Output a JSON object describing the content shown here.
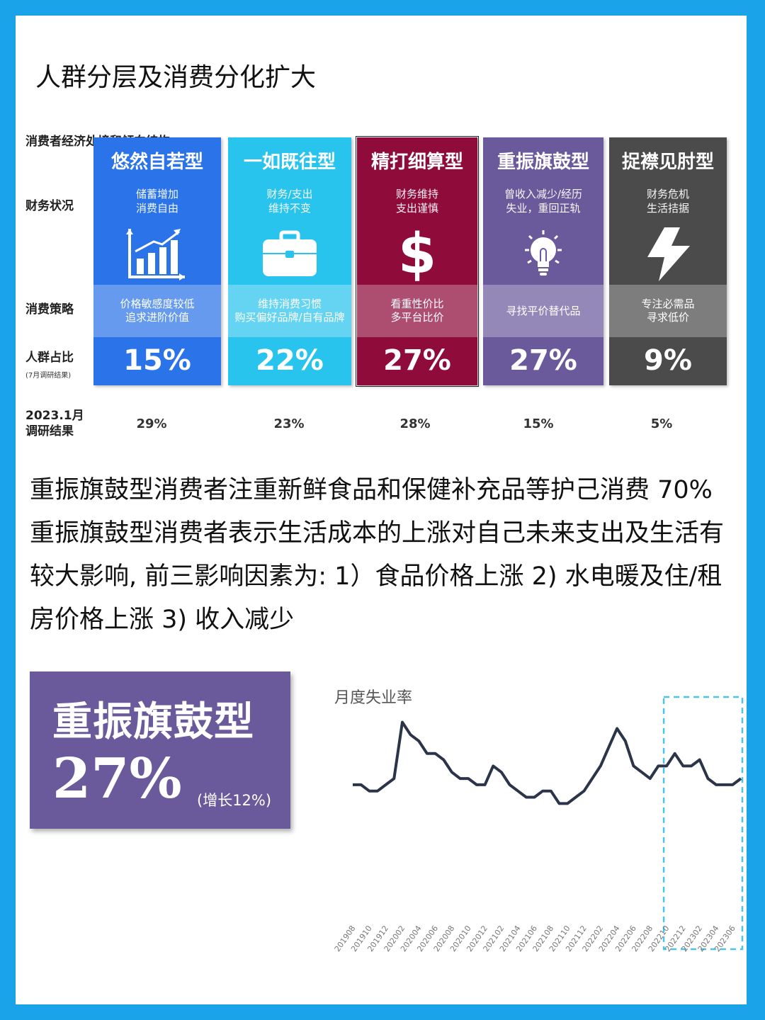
{
  "title": "人群分层及消费分化扩大",
  "subtitle": "消费者经济处境和倾向结构",
  "row_labels": {
    "finance": "财务状况",
    "strategy": "消费策略",
    "share": "人群占比",
    "share_note": "(7月调研结果)",
    "jan_line1": "2023.1月",
    "jan_line2": "调研结果"
  },
  "segments": [
    {
      "name": "悠然自若型",
      "fin1": "储蓄增加",
      "fin2": "消费自由",
      "icon": "growth-chart-icon",
      "strat1": "价格敏感度较低",
      "strat2": "追求进阶价值",
      "pct": "15%",
      "jan": "29%",
      "color": "#2a73e8"
    },
    {
      "name": "一如既往型",
      "fin1": "财务/支出",
      "fin2": "维持不变",
      "icon": "briefcase-icon",
      "strat1": "维持消费习惯",
      "strat2": "购买偏好品牌/自有品牌",
      "pct": "22%",
      "jan": "23%",
      "color": "#29c4ee"
    },
    {
      "name": "精打细算型",
      "fin1": "财务维持",
      "fin2": "支出谨慎",
      "icon": "dollar-icon",
      "strat1": "看重性价比",
      "strat2": "多平台比价",
      "pct": "27%",
      "jan": "28%",
      "color": "#8e0b3a"
    },
    {
      "name": "重振旗鼓型",
      "fin1": "曾收入减少/经历",
      "fin2": "失业，重回正轨",
      "icon": "lightbulb-icon",
      "strat1": "寻找平价替代品",
      "strat2": "",
      "pct": "27%",
      "jan": "15%",
      "color": "#6a5a9c"
    },
    {
      "name": "捉襟见肘型",
      "fin1": "财务危机",
      "fin2": "生活拮据",
      "icon": "lightning-icon",
      "strat1": "专注必需品",
      "strat2": "寻求低价",
      "pct": "9%",
      "jan": "5%",
      "color": "#4b4b4b"
    }
  ],
  "paragraph": "重振旗鼓型消费者注重新鲜食品和保健补充品等护己消费 70% 重振旗鼓型消费者表示生活成本的上涨对自己未来支出及生活有较大影响, 前三影响因素为: 1）食品价格上涨 2) 水电暖及住/租房价格上涨 3) 收入减少",
  "badge": {
    "name": "重振旗鼓型",
    "pct": "27%",
    "note": "(增长12%)"
  },
  "chart_data": {
    "type": "line",
    "title": "月度失业率",
    "tick_labels": [
      "201908",
      "201910",
      "201912",
      "202002",
      "202004",
      "202006",
      "202008",
      "202010",
      "202012",
      "202102",
      "202104",
      "202106",
      "202108",
      "202110",
      "202112",
      "202202",
      "202204",
      "202206",
      "202208",
      "202210",
      "202212",
      "202302",
      "202304",
      "202306"
    ],
    "x": [
      "201908",
      "201909",
      "201910",
      "201911",
      "201912",
      "202001",
      "202002",
      "202003",
      "202004",
      "202005",
      "202006",
      "202007",
      "202008",
      "202009",
      "202010",
      "202011",
      "202012",
      "202101",
      "202102",
      "202103",
      "202104",
      "202105",
      "202106",
      "202107",
      "202108",
      "202109",
      "202110",
      "202111",
      "202112",
      "202201",
      "202202",
      "202203",
      "202204",
      "202205",
      "202206",
      "202207",
      "202208",
      "202209",
      "202210",
      "202211",
      "202212",
      "202301",
      "202302",
      "202303",
      "202304",
      "202305",
      "202306",
      "202307"
    ],
    "values": [
      5.2,
      5.2,
      5.1,
      5.1,
      5.2,
      5.3,
      6.2,
      6.0,
      5.9,
      5.7,
      5.7,
      5.6,
      5.4,
      5.3,
      5.3,
      5.2,
      5.2,
      5.5,
      5.4,
      5.2,
      5.1,
      5.0,
      5.0,
      5.1,
      5.1,
      4.9,
      4.9,
      5.0,
      5.1,
      5.3,
      5.5,
      5.8,
      6.1,
      5.9,
      5.5,
      5.4,
      5.3,
      5.5,
      5.5,
      5.7,
      5.5,
      5.5,
      5.6,
      5.3,
      5.2,
      5.2,
      5.2,
      5.3
    ],
    "highlight_range": [
      "202210",
      "202307"
    ],
    "ylim": [
      4.7,
      6.4
    ],
    "color": "#2b3448",
    "highlight_color": "#4cc3e8"
  }
}
